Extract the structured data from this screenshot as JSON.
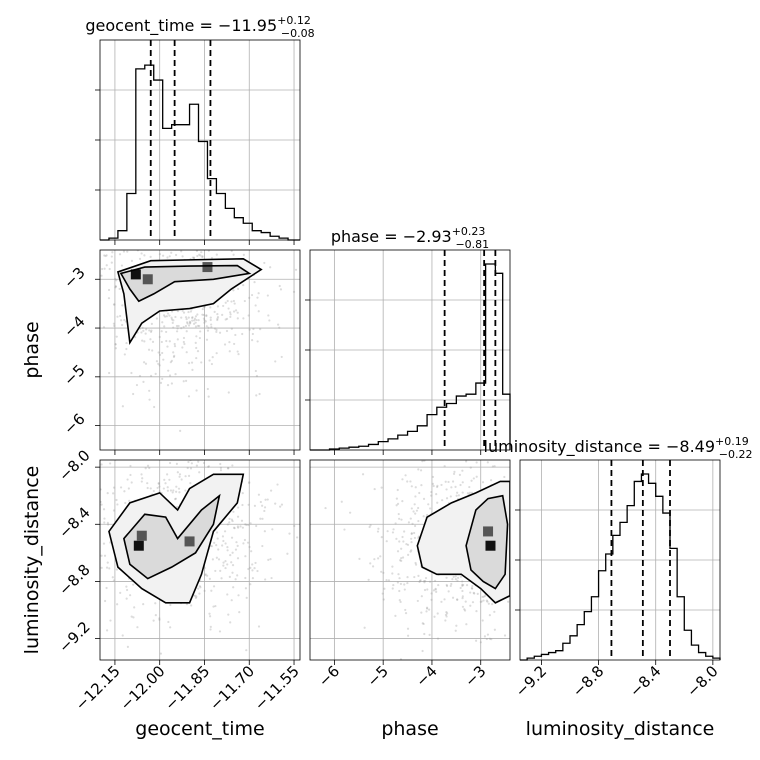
{
  "chart_data": {
    "type": "corner",
    "parameters": [
      "geocent_time",
      "phase",
      "luminosity_distance"
    ],
    "titles": {
      "geocent_time": {
        "name": "geocent_time",
        "median": "−11.95",
        "plus": "+0.12",
        "minus": "−0.08"
      },
      "phase": {
        "name": "phase",
        "median": "−2.93",
        "plus": "+0.23",
        "minus": "−0.81"
      },
      "luminosity_distance": {
        "name": "luminosity_distance",
        "median": "−8.49",
        "plus": "+0.19",
        "minus": "−0.22"
      }
    },
    "ranges": {
      "geocent_time": [
        -12.2,
        -11.53
      ],
      "phase": [
        -6.5,
        -2.4
      ],
      "luminosity_distance": [
        -9.35,
        -7.95
      ]
    },
    "ticks": {
      "geocent_time": {
        "values": [
          -12.15,
          -12.0,
          -11.85,
          -11.7,
          -11.55
        ],
        "labels": [
          "−12.15",
          "−12.00",
          "−11.85",
          "−11.70",
          "−11.55"
        ]
      },
      "phase": {
        "values": [
          -6,
          -5,
          -4,
          -3
        ],
        "labels": [
          "−6",
          "−5",
          "−4",
          "−3"
        ]
      },
      "luminosity_distance": {
        "values": [
          -9.2,
          -8.8,
          -8.4,
          -8.0
        ],
        "labels": [
          "−9.2",
          "−8.8",
          "−8.4",
          "−8.0"
        ]
      }
    },
    "quantiles": {
      "geocent_time": [
        -12.03,
        -11.95,
        -11.83
      ],
      "phase": [
        -3.74,
        -2.93,
        -2.7
      ],
      "luminosity_distance": [
        -8.71,
        -8.49,
        -8.3
      ]
    },
    "histograms": {
      "geocent_time": {
        "edges": [
          -12.2,
          -12.17,
          -12.14,
          -12.11,
          -12.08,
          -12.05,
          -12.02,
          -11.99,
          -11.96,
          -11.93,
          -11.9,
          -11.87,
          -11.84,
          -11.81,
          -11.78,
          -11.75,
          -11.72,
          -11.69,
          -11.66,
          -11.63,
          -11.6,
          -11.57,
          -11.53
        ],
        "counts": [
          0,
          0.01,
          0.05,
          0.25,
          0.92,
          0.94,
          0.86,
          0.6,
          0.62,
          0.62,
          0.73,
          0.53,
          0.33,
          0.25,
          0.17,
          0.12,
          0.09,
          0.05,
          0.04,
          0.02,
          0.01,
          0
        ]
      },
      "phase": {
        "edges": [
          -6.5,
          -6.3,
          -6.1,
          -5.9,
          -5.7,
          -5.5,
          -5.3,
          -5.1,
          -4.9,
          -4.7,
          -4.5,
          -4.3,
          -4.1,
          -3.9,
          -3.7,
          -3.5,
          -3.3,
          -3.1,
          -2.9,
          -2.7,
          -2.55,
          -2.4
        ],
        "counts": [
          0,
          0,
          0.005,
          0.01,
          0.015,
          0.02,
          0.03,
          0.045,
          0.06,
          0.08,
          0.1,
          0.13,
          0.19,
          0.23,
          0.25,
          0.29,
          0.3,
          0.36,
          1.0,
          0.95,
          0.3
        ]
      },
      "luminosity_distance": {
        "edges": [
          -9.35,
          -9.3,
          -9.25,
          -9.2,
          -9.15,
          -9.1,
          -9.05,
          -9.0,
          -8.95,
          -8.9,
          -8.85,
          -8.8,
          -8.75,
          -8.7,
          -8.65,
          -8.6,
          -8.55,
          -8.5,
          -8.45,
          -8.4,
          -8.35,
          -8.3,
          -8.25,
          -8.2,
          -8.15,
          -8.1,
          -8.05,
          -8.0,
          -7.95
        ],
        "counts": [
          0,
          0.01,
          0.02,
          0.03,
          0.04,
          0.05,
          0.09,
          0.13,
          0.19,
          0.26,
          0.34,
          0.48,
          0.57,
          0.67,
          0.74,
          0.83,
          0.96,
          1.0,
          0.95,
          0.88,
          0.79,
          0.6,
          0.34,
          0.16,
          0.08,
          0.04,
          0.02,
          0.01
        ]
      }
    },
    "contours_2d": {
      "phase_vs_geocent_time": {
        "outer": [
          [
            -12.1,
            -4.3
          ],
          [
            -12.12,
            -3.3
          ],
          [
            -12.14,
            -2.85
          ],
          [
            -12.03,
            -2.62
          ],
          [
            -11.88,
            -2.6
          ],
          [
            -11.72,
            -2.58
          ],
          [
            -11.66,
            -2.8
          ],
          [
            -11.76,
            -3.2
          ],
          [
            -11.82,
            -3.5
          ],
          [
            -11.9,
            -3.6
          ],
          [
            -12.0,
            -3.65
          ],
          [
            -12.06,
            -3.9
          ]
        ],
        "inner": [
          [
            -12.13,
            -2.88
          ],
          [
            -12.05,
            -2.75
          ],
          [
            -11.9,
            -2.73
          ],
          [
            -11.74,
            -2.72
          ],
          [
            -11.7,
            -2.88
          ],
          [
            -11.82,
            -3.0
          ],
          [
            -11.95,
            -3.05
          ],
          [
            -12.02,
            -3.3
          ],
          [
            -12.07,
            -3.45
          ],
          [
            -12.1,
            -3.2
          ]
        ],
        "peaks": [
          [
            -12.08,
            -2.9
          ],
          [
            -11.84,
            -2.75
          ],
          [
            -12.04,
            -3.0
          ]
        ]
      },
      "luminosity_distance_vs_geocent_time": {
        "outer": [
          [
            -12.17,
            -8.45
          ],
          [
            -12.1,
            -8.25
          ],
          [
            -12.0,
            -8.18
          ],
          [
            -11.94,
            -8.3
          ],
          [
            -11.9,
            -8.15
          ],
          [
            -11.82,
            -8.05
          ],
          [
            -11.72,
            -8.05
          ],
          [
            -11.74,
            -8.25
          ],
          [
            -11.82,
            -8.45
          ],
          [
            -11.86,
            -8.75
          ],
          [
            -11.9,
            -8.95
          ],
          [
            -11.98,
            -8.95
          ],
          [
            -12.06,
            -8.85
          ],
          [
            -12.14,
            -8.7
          ]
        ],
        "inner": [
          [
            -12.12,
            -8.5
          ],
          [
            -12.05,
            -8.33
          ],
          [
            -11.98,
            -8.35
          ],
          [
            -11.94,
            -8.5
          ],
          [
            -11.86,
            -8.3
          ],
          [
            -11.8,
            -8.2
          ],
          [
            -11.82,
            -8.4
          ],
          [
            -11.88,
            -8.6
          ],
          [
            -11.96,
            -8.7
          ],
          [
            -12.04,
            -8.78
          ],
          [
            -12.1,
            -8.68
          ]
        ],
        "peaks": [
          [
            -12.07,
            -8.55
          ],
          [
            -12.06,
            -8.48
          ],
          [
            -11.9,
            -8.52
          ]
        ]
      },
      "luminosity_distance_vs_phase": {
        "outer": [
          [
            -4.3,
            -8.55
          ],
          [
            -4.1,
            -8.35
          ],
          [
            -3.6,
            -8.25
          ],
          [
            -3.1,
            -8.18
          ],
          [
            -2.6,
            -8.1
          ],
          [
            -2.4,
            -8.1
          ],
          [
            -2.4,
            -8.9
          ],
          [
            -2.7,
            -8.95
          ],
          [
            -3.0,
            -8.85
          ],
          [
            -3.4,
            -8.75
          ],
          [
            -3.9,
            -8.75
          ],
          [
            -4.2,
            -8.7
          ]
        ],
        "inner": [
          [
            -3.3,
            -8.55
          ],
          [
            -3.1,
            -8.3
          ],
          [
            -2.85,
            -8.22
          ],
          [
            -2.55,
            -8.2
          ],
          [
            -2.45,
            -8.4
          ],
          [
            -2.5,
            -8.75
          ],
          [
            -2.7,
            -8.85
          ],
          [
            -2.95,
            -8.8
          ],
          [
            -3.2,
            -8.72
          ]
        ],
        "peaks": [
          [
            -2.8,
            -8.55
          ],
          [
            -2.85,
            -8.45
          ]
        ]
      }
    }
  }
}
